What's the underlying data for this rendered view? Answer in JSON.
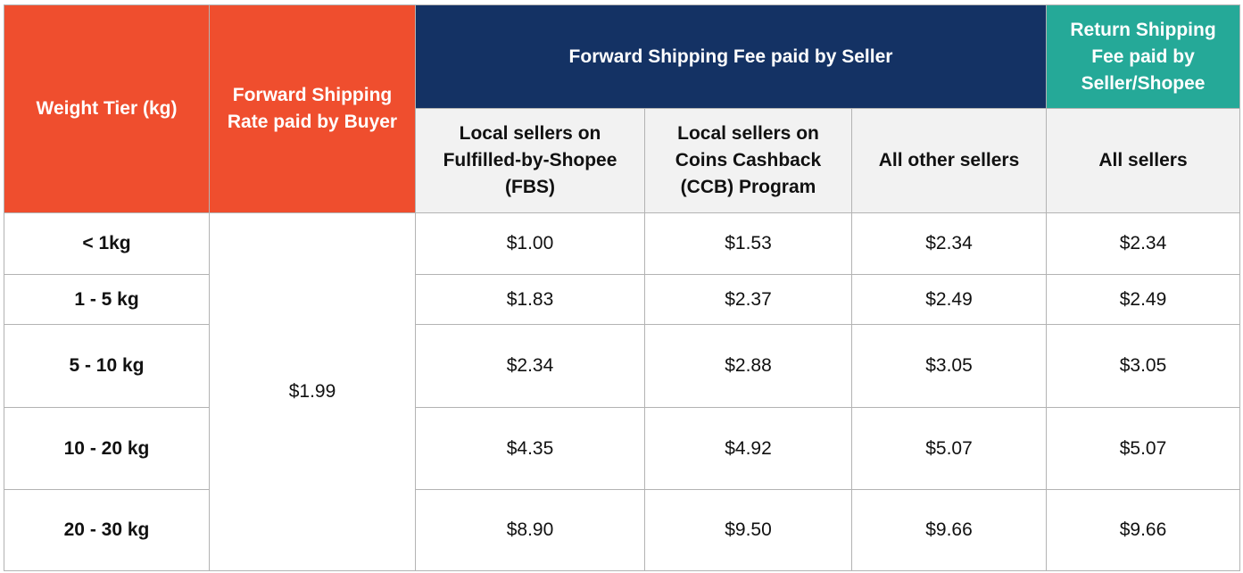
{
  "table": {
    "colors": {
      "buyer_header_bg": "#ef4e2e",
      "forward_header_bg": "#143264",
      "return_header_bg": "#25a998",
      "subheader_bg": "#f2f2f2",
      "border": "#b3b3b3"
    },
    "headers": {
      "weight_tier": "Weight Tier (kg)",
      "buyer_rate": "Forward Shipping Rate paid by Buyer",
      "forward_fee": "Forward Shipping Fee paid by Seller",
      "return_fee": "Return Shipping Fee paid by Seller/Shopee",
      "sub": [
        "Local sellers on Fulfilled-by-Shopee (FBS)",
        "Local sellers on Coins Cashback (CCB) Program",
        "All other sellers",
        "All sellers"
      ]
    },
    "buyer_rate_value": "$1.99",
    "rows": [
      {
        "tier": "< 1kg",
        "fbs": "$1.00",
        "ccb": "$1.53",
        "other": "$2.34",
        "return": "$2.34"
      },
      {
        "tier": "1 - 5 kg",
        "fbs": "$1.83",
        "ccb": "$2.37",
        "other": "$2.49",
        "return": "$2.49"
      },
      {
        "tier": "5 - 10 kg",
        "fbs": "$2.34",
        "ccb": "$2.88",
        "other": "$3.05",
        "return": "$3.05"
      },
      {
        "tier": "10 - 20 kg",
        "fbs": "$4.35",
        "ccb": "$4.92",
        "other": "$5.07",
        "return": "$5.07"
      },
      {
        "tier": "20 - 30 kg",
        "fbs": "$8.90",
        "ccb": "$9.50",
        "other": "$9.66",
        "return": "$9.66"
      }
    ]
  }
}
